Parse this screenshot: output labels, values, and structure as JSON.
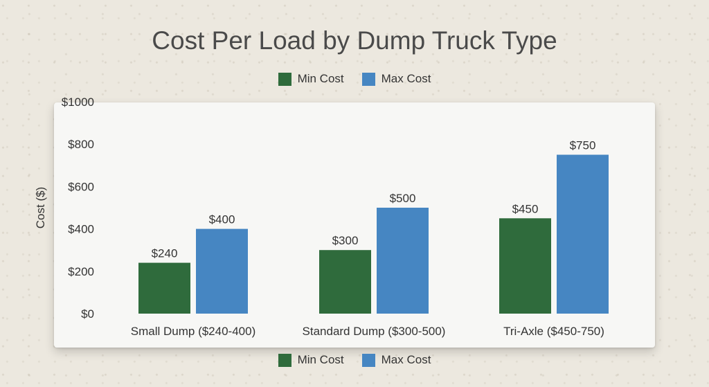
{
  "chart_data": {
    "type": "bar",
    "title": "Cost Per Load by Dump Truck Type",
    "xlabel": "",
    "ylabel": "Cost ($)",
    "ylim": [
      0,
      1000
    ],
    "yticks": [
      "$0",
      "$200",
      "$400",
      "$600",
      "$800",
      "$1000"
    ],
    "ytick_values": [
      0,
      200,
      400,
      600,
      800,
      1000
    ],
    "categories": [
      "Small Dump ($240-400)",
      "Standard Dump ($300-500)",
      "Tri-Axle ($450-750)"
    ],
    "series": [
      {
        "name": "Min Cost",
        "color": "#2f6b3c",
        "values": [
          240,
          300,
          450
        ],
        "labels": [
          "$240",
          "$300",
          "$450"
        ]
      },
      {
        "name": "Max Cost",
        "color": "#4686c2",
        "values": [
          400,
          500,
          750
        ],
        "labels": [
          "$400",
          "$500",
          "$750"
        ]
      }
    ],
    "legend": "top and bottom",
    "grid": false
  }
}
